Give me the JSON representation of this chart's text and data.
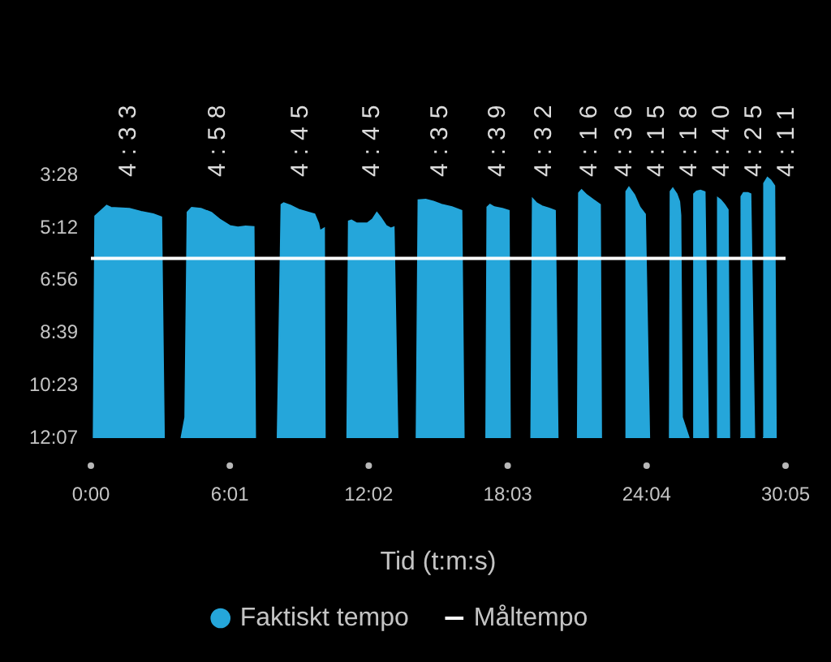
{
  "chart_data": {
    "type": "area",
    "xlabel": "Tid (t:m:s)",
    "xlim": [
      0,
      1805
    ],
    "xticks": [
      {
        "value": 0,
        "label": "0:00"
      },
      {
        "value": 361,
        "label": "6:01"
      },
      {
        "value": 722,
        "label": "12:02"
      },
      {
        "value": 1083,
        "label": "18:03"
      },
      {
        "value": 1444,
        "label": "24:04"
      },
      {
        "value": 1805,
        "label": "30:05"
      }
    ],
    "ylim": [
      727,
      208
    ],
    "yticks": [
      {
        "value": 208,
        "label": "3:28"
      },
      {
        "value": 312,
        "label": "5:12"
      },
      {
        "value": 416,
        "label": "6:56"
      },
      {
        "value": 519,
        "label": "8:39"
      },
      {
        "value": 623,
        "label": "10:23"
      },
      {
        "value": 727,
        "label": "12:07"
      }
    ],
    "legend": "bottom",
    "series": [
      {
        "name": "Faktiskt tempo",
        "type": "area",
        "color": "#25a6da",
        "x": [
          7,
          11,
          41,
          52,
          100,
          130,
          162,
          183,
          190,
          210,
          235,
          245,
          251,
          262,
          286,
          313,
          334,
          361,
          382,
          402,
          423,
          427,
          455,
          485,
          495,
          501,
          519,
          540,
          567,
          581,
          591,
          595,
          606,
          608,
          637,
          666,
          670,
          677,
          691,
          718,
          732,
          743,
          753,
          767,
          780,
          787,
          797,
          820,
          846,
          851,
          870,
          890,
          911,
          938,
          963,
          969,
          998,
          1027,
          1030,
          1037,
          1048,
          1069,
          1086,
          1089,
          1116,
          1144,
          1148,
          1158,
          1172,
          1192,
          1206,
          1213,
          1240,
          1265,
          1268,
          1275,
          1288,
          1306,
          1323,
          1326,
          1357,
          1389,
          1391,
          1398,
          1412,
          1426,
          1440,
          1451,
          1478,
          1504,
          1506,
          1512,
          1522,
          1529,
          1532,
          1536,
          1554,
          1560,
          1566,
          1567,
          1574,
          1584,
          1595,
          1604,
          1616,
          1628,
          1629,
          1636,
          1646,
          1655,
          1659,
          1673,
          1687,
          1690,
          1696,
          1707,
          1714,
          1724,
          1735,
          1746,
          1749,
          1758,
          1766,
          1776,
          1780
        ],
        "values": [
          727,
          289,
          268,
          272,
          274,
          280,
          285,
          291,
          727,
          null,
          727,
          686,
          281,
          272,
          274,
          282,
          295,
          308,
          311,
          309,
          310,
          727,
          null,
          727,
          266,
          263,
          268,
          276,
          282,
          285,
          303,
          318,
          313,
          727,
          null,
          727,
          299,
          297,
          303,
          303,
          295,
          282,
          292,
          308,
          313,
          311,
          727,
          null,
          727,
          257,
          256,
          260,
          266,
          271,
          278,
          727,
          null,
          727,
          271,
          266,
          271,
          274,
          278,
          727,
          null,
          727,
          255,
          263,
          269,
          274,
          278,
          727,
          null,
          727,
          243,
          237,
          247,
          257,
          266,
          727,
          null,
          727,
          240,
          232,
          247,
          271,
          285,
          727,
          null,
          727,
          240,
          234,
          245,
          260,
          287,
          686,
          727,
          null,
          727,
          245,
          240,
          238,
          241,
          727,
          null,
          727,
          253,
          257,
          266,
          276,
          727,
          null,
          727,
          250,
          243,
          243,
          245,
          727,
          null,
          727,
          224,
          213,
          218,
          229,
          727
        ]
      },
      {
        "name": "Måltempo",
        "type": "line",
        "color": "#ffffff",
        "x": [
          0,
          1805
        ],
        "values": [
          372,
          372
        ]
      }
    ],
    "annotations": [
      "4:33",
      "4:58",
      "4:45",
      "4:45",
      "4:35",
      "4:39",
      "4:32",
      "4:16",
      "4:36",
      "4:15",
      "4:18",
      "4:40",
      "4:25",
      "4:11"
    ]
  }
}
